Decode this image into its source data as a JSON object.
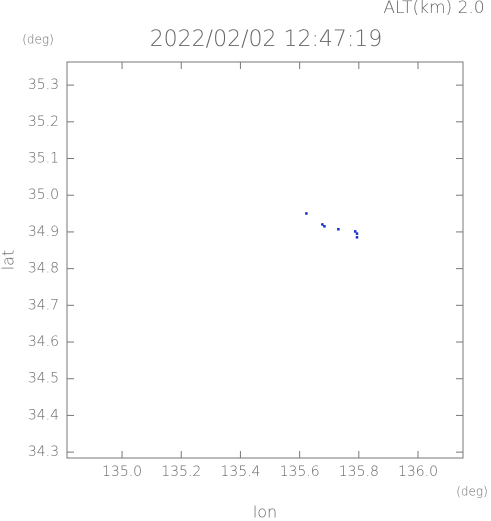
{
  "chart_data": {
    "type": "scatter",
    "title": "2022/02/02 12:47:19",
    "subtitle": "ALT(km) 2.0",
    "y_unit": "(deg)",
    "x_unit": "(deg)",
    "x_label": "lon",
    "y_label": "lat",
    "xlim": [
      134.814,
      136.152
    ],
    "ylim": [
      34.284,
      35.363
    ],
    "xticks": [
      {
        "value": 135.0,
        "label": "135.0"
      },
      135.2,
      135.4,
      135.6,
      135.8,
      {
        "value": 136.0,
        "label": "136.0"
      }
    ],
    "yticks": [
      35.3,
      35.2,
      35.1,
      {
        "value": 35.0,
        "label": "35.0"
      },
      34.9,
      34.8,
      34.7,
      34.6,
      34.5,
      34.4,
      34.3
    ],
    "series": [
      {
        "color": "#1030d0",
        "x": [
          135.622,
          135.676,
          135.683,
          135.73,
          135.787,
          135.793,
          135.793
        ],
        "values": [
          34.951,
          34.921,
          34.916,
          34.908,
          34.902,
          34.896,
          34.886
        ]
      }
    ]
  }
}
